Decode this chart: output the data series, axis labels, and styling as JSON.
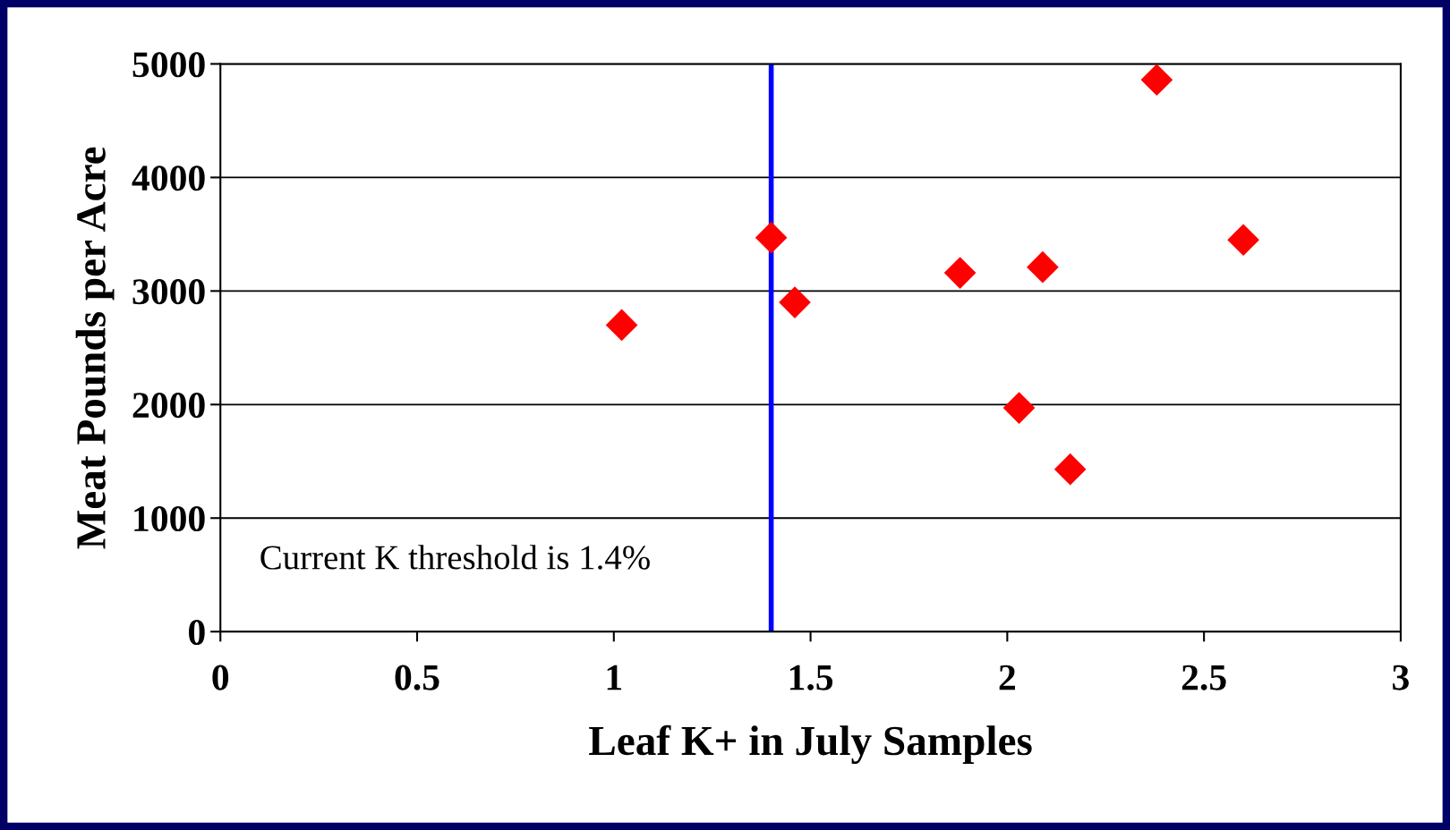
{
  "chart_data": {
    "type": "scatter",
    "xlabel": "Leaf K+ in July Samples",
    "ylabel": "Meat Pounds per Acre",
    "x": [
      1.02,
      1.4,
      1.46,
      1.88,
      2.09,
      2.03,
      2.16,
      2.38,
      2.6
    ],
    "series": [
      {
        "color": "#ff0000",
        "values": [
          2700,
          3470,
          2900,
          3160,
          3210,
          1970,
          1430,
          4860,
          3450
        ]
      }
    ],
    "marker": "diamond",
    "grid": "y",
    "xlim": [
      0,
      3
    ],
    "xticks": [
      0,
      0.5,
      1,
      1.5,
      2,
      2.5,
      3
    ],
    "ylim": [
      0,
      5000
    ],
    "yticks": [
      0,
      1000,
      2000,
      3000,
      4000,
      5000
    ],
    "annotations": [
      "Current K threshold is 1.4%"
    ],
    "ref_lines": [
      {
        "axis": "x",
        "value": 1.4,
        "color": "#0000ff",
        "line_style": "solid"
      }
    ]
  }
}
